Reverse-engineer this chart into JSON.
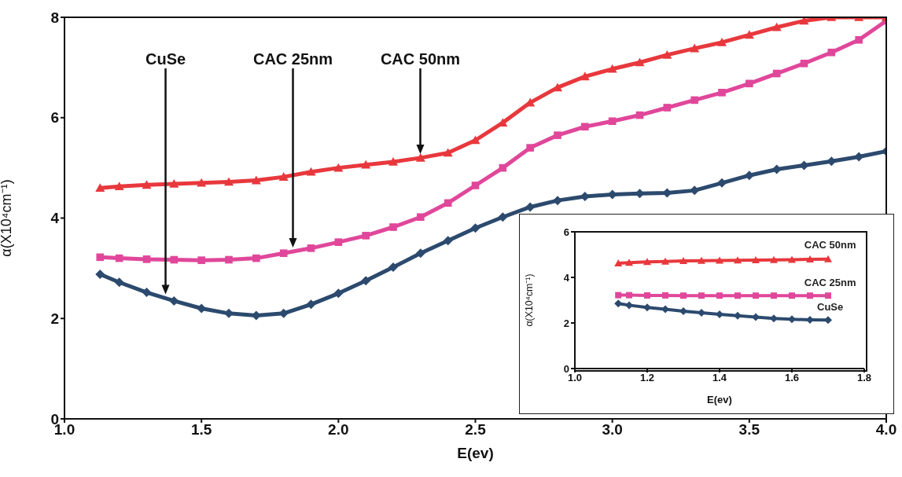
{
  "chart_data": [
    {
      "type": "line",
      "xlabel": "E(ev)",
      "ylabel": "α(X10⁴cm⁻¹)",
      "xlim": [
        1.0,
        4.0
      ],
      "ylim": [
        0,
        8
      ],
      "xticks": [
        {
          "value": 1.0,
          "label": "1.0"
        },
        {
          "value": 1.5,
          "label": "1.5"
        },
        {
          "value": 2.0,
          "label": "2.0"
        },
        {
          "value": 2.5,
          "label": "2.5"
        },
        {
          "value": 3.0,
          "label": "3.0"
        },
        {
          "value": 3.5,
          "label": "3.5"
        },
        {
          "value": 4.0,
          "label": "4.0"
        }
      ],
      "yticks": [
        0,
        2,
        4,
        6,
        8
      ],
      "grid": false,
      "series": [
        {
          "color": "#2c4a6e",
          "marker": "diamond",
          "x": [
            1.13,
            1.2,
            1.3,
            1.4,
            1.5,
            1.6,
            1.7,
            1.8,
            1.9,
            2.0,
            2.1,
            2.2,
            2.3,
            2.4,
            2.5,
            2.6,
            2.7,
            2.8,
            2.9,
            3.0,
            3.1,
            3.2,
            3.3,
            3.4,
            3.5,
            3.6,
            3.7,
            3.8,
            3.9,
            4.0
          ],
          "values": [
            2.88,
            2.72,
            2.52,
            2.35,
            2.2,
            2.1,
            2.06,
            2.1,
            2.28,
            2.5,
            2.75,
            3.02,
            3.3,
            3.55,
            3.8,
            4.02,
            4.22,
            4.35,
            4.43,
            4.47,
            4.49,
            4.5,
            4.55,
            4.7,
            4.85,
            4.97,
            5.05,
            5.13,
            5.22,
            5.33
          ]
        },
        {
          "color": "#e0479a",
          "marker": "square",
          "x": [
            1.13,
            1.2,
            1.3,
            1.4,
            1.5,
            1.6,
            1.7,
            1.8,
            1.9,
            2.0,
            2.1,
            2.2,
            2.3,
            2.4,
            2.5,
            2.6,
            2.7,
            2.8,
            2.9,
            3.0,
            3.1,
            3.2,
            3.3,
            3.4,
            3.5,
            3.6,
            3.7,
            3.8,
            3.9,
            4.0
          ],
          "values": [
            3.22,
            3.2,
            3.18,
            3.17,
            3.16,
            3.17,
            3.2,
            3.3,
            3.4,
            3.52,
            3.65,
            3.82,
            4.02,
            4.3,
            4.65,
            5.0,
            5.4,
            5.65,
            5.82,
            5.93,
            6.05,
            6.2,
            6.35,
            6.5,
            6.68,
            6.88,
            7.08,
            7.3,
            7.55,
            7.93
          ]
        },
        {
          "color": "#e8383d",
          "marker": "triangle",
          "x": [
            1.13,
            1.2,
            1.3,
            1.4,
            1.5,
            1.6,
            1.7,
            1.8,
            1.9,
            2.0,
            2.1,
            2.2,
            2.3,
            2.4,
            2.5,
            2.6,
            2.7,
            2.8,
            2.9,
            3.0,
            3.1,
            3.2,
            3.3,
            3.4,
            3.5,
            3.6,
            3.7,
            3.8,
            3.9,
            4.0
          ],
          "values": [
            4.6,
            4.63,
            4.66,
            4.68,
            4.7,
            4.72,
            4.75,
            4.82,
            4.92,
            5.0,
            5.06,
            5.12,
            5.2,
            5.3,
            5.55,
            5.9,
            6.3,
            6.6,
            6.82,
            6.97,
            7.1,
            7.25,
            7.38,
            7.5,
            7.65,
            7.8,
            7.93,
            8.0,
            8.0,
            8.0
          ]
        }
      ],
      "annotations": [
        "CuSe",
        "CAC 25nm",
        "CAC 50nm"
      ]
    },
    {
      "type": "line",
      "xlabel": "E(ev)",
      "ylabel": "α(X10⁴cm⁻¹)",
      "xlim": [
        1.0,
        1.8
      ],
      "ylim": [
        0,
        6
      ],
      "xticks": [
        {
          "value": 1.0,
          "label": "1.0"
        },
        {
          "value": 1.2,
          "label": "1.2"
        },
        {
          "value": 1.4,
          "label": "1.4"
        },
        {
          "value": 1.6,
          "label": "1.6"
        },
        {
          "value": 1.8,
          "label": "1.8"
        }
      ],
      "yticks": [
        0,
        2,
        4,
        6
      ],
      "grid": false,
      "series": [
        {
          "name": "CAC 50nm",
          "color": "#e8383d",
          "marker": "triangle",
          "x": [
            1.12,
            1.15,
            1.2,
            1.25,
            1.3,
            1.35,
            1.4,
            1.45,
            1.5,
            1.55,
            1.6,
            1.65,
            1.7
          ],
          "values": [
            4.62,
            4.65,
            4.68,
            4.7,
            4.72,
            4.73,
            4.74,
            4.75,
            4.76,
            4.77,
            4.78,
            4.79,
            4.8
          ]
        },
        {
          "name": "CAC 25nm",
          "color": "#e0479a",
          "marker": "square",
          "x": [
            1.12,
            1.15,
            1.2,
            1.25,
            1.3,
            1.35,
            1.4,
            1.45,
            1.5,
            1.55,
            1.6,
            1.65,
            1.7
          ],
          "values": [
            3.22,
            3.22,
            3.21,
            3.21,
            3.2,
            3.2,
            3.2,
            3.2,
            3.2,
            3.2,
            3.2,
            3.2,
            3.2
          ]
        },
        {
          "name": "CuSe",
          "color": "#2c4a6e",
          "marker": "diamond",
          "x": [
            1.12,
            1.15,
            1.2,
            1.25,
            1.3,
            1.35,
            1.4,
            1.45,
            1.5,
            1.55,
            1.6,
            1.65,
            1.7
          ],
          "values": [
            2.85,
            2.78,
            2.68,
            2.6,
            2.52,
            2.45,
            2.38,
            2.32,
            2.26,
            2.2,
            2.16,
            2.14,
            2.13
          ]
        }
      ]
    }
  ]
}
